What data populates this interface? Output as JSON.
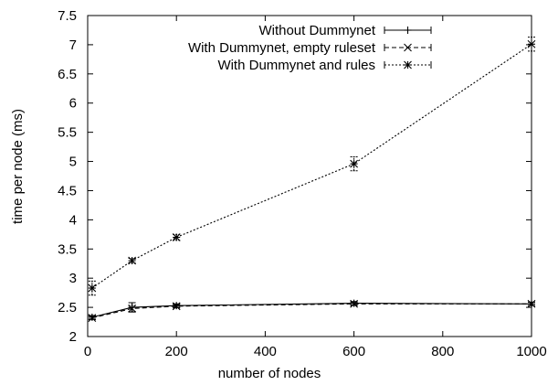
{
  "chart_data": {
    "type": "line",
    "title": "",
    "xlabel": "number of nodes",
    "ylabel": "time per node (ms)",
    "xlim": [
      0,
      1000
    ],
    "ylim": [
      2,
      7.5
    ],
    "xticks": [
      0,
      200,
      400,
      600,
      800,
      1000
    ],
    "yticks": [
      2,
      2.5,
      3,
      3.5,
      4,
      4.5,
      5,
      5.5,
      6,
      6.5,
      7,
      7.5
    ],
    "xtick_labels": [
      "0",
      "200",
      "400",
      "600",
      "800",
      "1000"
    ],
    "ytick_labels": [
      "2",
      "2.5",
      "3",
      "3.5",
      "4",
      "4.5",
      "5",
      "5.5",
      "6",
      "6.5",
      "7",
      "7.5"
    ],
    "grid": false,
    "legend_position": "top-right",
    "series": [
      {
        "name": "Without Dummynet",
        "marker": "plus",
        "line_style": "solid",
        "x": [
          10,
          100,
          200,
          600,
          1000
        ],
        "y": [
          2.33,
          2.5,
          2.53,
          2.57,
          2.56
        ],
        "err": [
          0.03,
          0.08,
          0.03,
          0.03,
          0.03
        ]
      },
      {
        "name": "With Dummynet, empty ruleset",
        "marker": "cross",
        "line_style": "dashed",
        "x": [
          10,
          100,
          200,
          600,
          1000
        ],
        "y": [
          2.32,
          2.48,
          2.52,
          2.56,
          2.56
        ],
        "err": [
          0.03,
          0.05,
          0.03,
          0.03,
          0.03
        ]
      },
      {
        "name": "With Dummynet and rules",
        "marker": "star",
        "line_style": "dotted",
        "x": [
          10,
          100,
          200,
          600,
          1000
        ],
        "y": [
          2.83,
          3.3,
          3.7,
          4.96,
          7.01
        ],
        "err": [
          0.12,
          0.04,
          0.05,
          0.12,
          0.12
        ]
      }
    ]
  }
}
